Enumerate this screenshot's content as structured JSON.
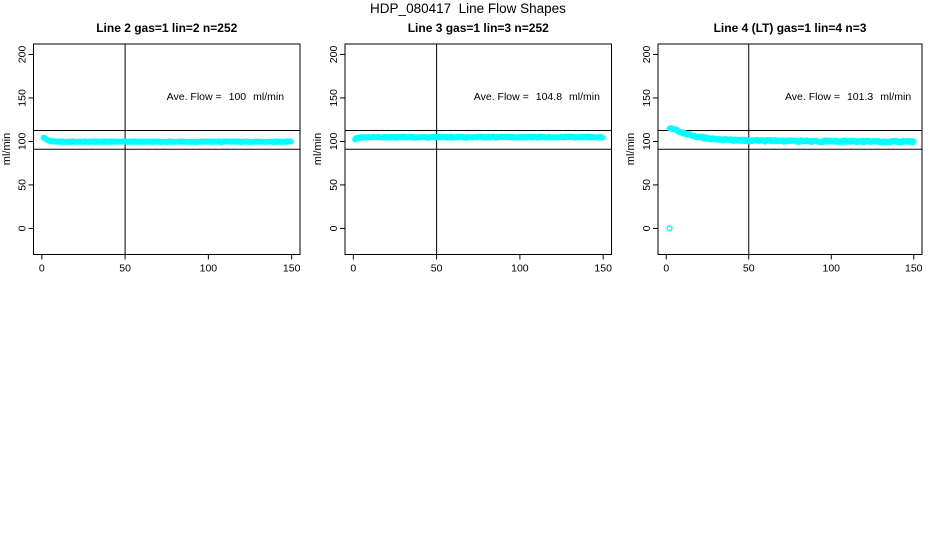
{
  "figure_title": "HDP_080417  Line Flow Shapes",
  "colors": {
    "points": "#00FFFF",
    "axis": "#000000",
    "background": "#FFFFFF"
  },
  "chart_data": [
    {
      "type": "scatter",
      "title": "Line 2 gas=1 lin=2 n=252",
      "ylabel": "ml/min",
      "xlabel": "",
      "x_ticks": [
        0,
        50,
        100,
        150
      ],
      "y_ticks": [
        0,
        50,
        100,
        150,
        200
      ],
      "xlim": [
        -5,
        155
      ],
      "ylim": [
        -30,
        212
      ],
      "grid": false,
      "reference_lines": {
        "horizontal": [
          112.5,
          91
        ],
        "vertical": [
          50
        ]
      },
      "annotation": {
        "label": "Ave. Flow =",
        "value": "100",
        "unit": "ml/min"
      },
      "series": [
        {
          "name": "line2-flow",
          "marker": "open-circle",
          "color": "#00FFFF",
          "x_start": 1,
          "x_end": 150,
          "x_step": 0.55,
          "jitter": 0.5,
          "control_points": [
            [
              1,
              104.3
            ],
            [
              2,
              103.2
            ],
            [
              3,
              102.0
            ],
            [
              4,
              101.0
            ],
            [
              5,
              100.4
            ],
            [
              7,
              100.0
            ],
            [
              10,
              99.8
            ],
            [
              20,
              99.7
            ],
            [
              150,
              99.7
            ]
          ]
        }
      ],
      "outliers": []
    },
    {
      "type": "scatter",
      "title": "Line 3 gas=1 lin=3 n=252",
      "ylabel": "ml/min",
      "xlabel": "",
      "x_ticks": [
        0,
        50,
        100,
        150
      ],
      "y_ticks": [
        0,
        50,
        100,
        150,
        200
      ],
      "xlim": [
        -5,
        155
      ],
      "ylim": [
        -30,
        212
      ],
      "grid": false,
      "reference_lines": {
        "horizontal": [
          112.5,
          91
        ],
        "vertical": [
          50
        ]
      },
      "annotation": {
        "label": "Ave. Flow =",
        "value": "104.8",
        "unit": "ml/min"
      },
      "series": [
        {
          "name": "line3-flow",
          "marker": "open-circle",
          "color": "#00FFFF",
          "x_start": 1,
          "x_end": 150,
          "x_step": 0.55,
          "jitter": 0.7,
          "control_points": [
            [
              1,
              102.5
            ],
            [
              2,
              103.8
            ],
            [
              4,
              104.6
            ],
            [
              8,
              104.8
            ],
            [
              60,
              104.7
            ],
            [
              90,
              104.9
            ],
            [
              150,
              104.8
            ]
          ]
        }
      ],
      "outliers": []
    },
    {
      "type": "scatter",
      "title": "Line 4 (LT) gas=1 lin=4 n=3",
      "ylabel": "ml/min",
      "xlabel": "",
      "x_ticks": [
        0,
        50,
        100,
        150
      ],
      "y_ticks": [
        0,
        50,
        100,
        150,
        200
      ],
      "xlim": [
        -5,
        155
      ],
      "ylim": [
        -30,
        212
      ],
      "grid": false,
      "reference_lines": {
        "horizontal": [
          112.5,
          91
        ],
        "vertical": [
          50
        ]
      },
      "annotation": {
        "label": "Ave. Flow =",
        "value": "101.3",
        "unit": "ml/min"
      },
      "series": [
        {
          "name": "line4-flow",
          "marker": "open-circle",
          "color": "#00FFFF",
          "x_start": 2,
          "x_end": 150,
          "x_step": 0.55,
          "jitter": 1.1,
          "control_points": [
            [
              2,
              115.5
            ],
            [
              4,
              114.5
            ],
            [
              6,
              113.0
            ],
            [
              8,
              111.5
            ],
            [
              10,
              110.0
            ],
            [
              13,
              108.0
            ],
            [
              16,
              106.5
            ],
            [
              20,
              105.0
            ],
            [
              24,
              103.8
            ],
            [
              28,
              103.0
            ],
            [
              33,
              102.2
            ],
            [
              40,
              101.5
            ],
            [
              50,
              101.0
            ],
            [
              65,
              100.7
            ],
            [
              80,
              100.4
            ],
            [
              100,
              100.2
            ],
            [
              125,
              100.0
            ],
            [
              150,
              99.8
            ]
          ]
        }
      ],
      "outliers": [
        [
          2,
          0
        ]
      ]
    }
  ]
}
